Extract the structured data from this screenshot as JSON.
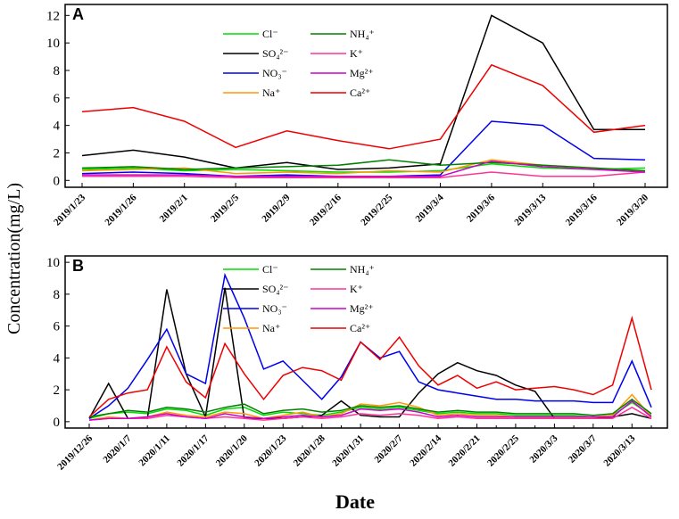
{
  "ylabel": "Concentration(mg/L)",
  "xlabel": "Date",
  "chart_data": [
    {
      "type": "line",
      "title": "A",
      "categories": [
        "2019/1/23",
        "2019/1/26",
        "2019/2/1",
        "2019/2/5",
        "2019/2/9",
        "2019/2/16",
        "2019/2/25",
        "2019/3/4",
        "2019/3/6",
        "2019/3/13",
        "2019/3/16",
        "2019/3/20"
      ],
      "ylim": [
        -0.5,
        12.8
      ],
      "yticks": [
        0,
        2,
        4,
        6,
        8,
        10,
        12
      ],
      "series": [
        {
          "name": "Cl⁻",
          "color": "#00dd00",
          "values": [
            0.8,
            0.9,
            0.7,
            0.8,
            0.7,
            0.6,
            0.6,
            0.7,
            1.2,
            0.9,
            0.8,
            0.9
          ]
        },
        {
          "name": "SO₄²⁻",
          "color": "#000000",
          "values": [
            1.8,
            2.2,
            1.7,
            0.9,
            1.3,
            0.8,
            0.9,
            1.2,
            12.0,
            10.0,
            3.7,
            3.7
          ]
        },
        {
          "name": "NO₃⁻",
          "color": "#0000ee",
          "values": [
            0.5,
            0.6,
            0.5,
            0.3,
            0.4,
            0.3,
            0.3,
            0.4,
            4.3,
            4.0,
            1.6,
            1.5
          ]
        },
        {
          "name": "Na⁺",
          "color": "#ff9900",
          "values": [
            0.7,
            0.8,
            0.9,
            0.5,
            0.6,
            0.5,
            0.7,
            0.6,
            1.5,
            1.1,
            0.9,
            0.7
          ]
        },
        {
          "name": "NH₄⁺",
          "color": "#008000",
          "values": [
            0.9,
            1.0,
            0.8,
            0.9,
            1.0,
            1.1,
            1.5,
            1.1,
            1.3,
            1.1,
            0.9,
            0.7
          ]
        },
        {
          "name": "K⁺",
          "color": "#ff3399",
          "values": [
            0.3,
            0.3,
            0.3,
            0.2,
            0.2,
            0.2,
            0.2,
            0.2,
            0.6,
            0.3,
            0.3,
            0.6
          ]
        },
        {
          "name": "Mg²⁺",
          "color": "#cc00cc",
          "values": [
            0.4,
            0.4,
            0.4,
            0.3,
            0.3,
            0.3,
            0.3,
            0.3,
            1.4,
            1.0,
            0.8,
            0.6
          ]
        },
        {
          "name": "Ca²⁺",
          "color": "#ee0000",
          "values": [
            5.0,
            5.3,
            4.3,
            2.4,
            3.6,
            2.9,
            2.3,
            3.0,
            8.4,
            6.9,
            3.5,
            4.0
          ]
        }
      ]
    },
    {
      "type": "line",
      "title": "B",
      "categories": [
        "2019/12/26",
        null,
        "2020/1/7",
        null,
        "2020/1/11",
        null,
        "2020/1/17",
        null,
        "2020/1/20",
        null,
        "2020/1/23",
        null,
        "2020/1/28",
        null,
        "2020/1/31",
        null,
        "2020/2/7",
        null,
        "2020/2/14",
        null,
        "2020/2/21",
        null,
        "2020/2/25",
        null,
        "2020/3/3",
        null,
        "2020/3/7",
        null,
        "2020/3/13",
        null
      ],
      "ylim": [
        -0.4,
        10.4
      ],
      "yticks": [
        0,
        2,
        4,
        6,
        8,
        10
      ],
      "series": [
        {
          "name": "Cl⁻",
          "color": "#00dd00",
          "values": [
            0.2,
            0.5,
            0.6,
            0.5,
            0.8,
            0.7,
            0.4,
            0.8,
            0.9,
            0.4,
            0.6,
            0.5,
            0.4,
            0.6,
            0.9,
            0.8,
            0.9,
            0.7,
            0.5,
            0.6,
            0.5,
            0.5,
            0.4,
            0.4,
            0.4,
            0.4,
            0.3,
            0.4,
            1.2,
            0.4
          ]
        },
        {
          "name": "SO₄²⁻",
          "color": "#000000",
          "values": [
            0.2,
            2.4,
            0.2,
            0.2,
            8.3,
            3.0,
            0.3,
            8.4,
            0.2,
            0.2,
            0.2,
            0.3,
            0.4,
            1.3,
            0.4,
            0.3,
            0.3,
            1.8,
            3.0,
            3.7,
            3.2,
            2.9,
            2.3,
            1.9,
            0.2,
            0.2,
            0.2,
            0.3,
            0.5,
            0.2
          ]
        },
        {
          "name": "NO₃⁻",
          "color": "#0000ee",
          "values": [
            0.2,
            1.0,
            2.1,
            3.9,
            5.8,
            3.0,
            2.4,
            9.2,
            6.5,
            3.3,
            3.8,
            2.6,
            1.4,
            2.8,
            5.0,
            4.0,
            4.4,
            2.5,
            2.0,
            1.8,
            1.6,
            1.4,
            1.4,
            1.3,
            1.3,
            1.3,
            1.2,
            1.2,
            3.8,
            0.9
          ]
        },
        {
          "name": "Na⁺",
          "color": "#ff9900",
          "values": [
            0.1,
            0.3,
            0.2,
            0.3,
            0.6,
            0.4,
            0.3,
            0.6,
            0.5,
            0.2,
            0.4,
            0.6,
            0.3,
            0.5,
            1.1,
            1.0,
            1.2,
            0.9,
            0.4,
            0.5,
            0.4,
            0.4,
            0.3,
            0.3,
            0.3,
            0.3,
            0.3,
            0.4,
            1.7,
            0.3
          ]
        },
        {
          "name": "NH₄⁺",
          "color": "#008000",
          "values": [
            0.3,
            0.5,
            0.7,
            0.6,
            0.9,
            0.8,
            0.6,
            0.9,
            1.1,
            0.5,
            0.7,
            0.8,
            0.6,
            0.7,
            1.0,
            0.9,
            1.0,
            0.8,
            0.6,
            0.7,
            0.6,
            0.6,
            0.5,
            0.5,
            0.5,
            0.5,
            0.4,
            0.5,
            1.4,
            0.5
          ]
        },
        {
          "name": "K⁺",
          "color": "#ff3399",
          "values": [
            0.1,
            0.2,
            0.2,
            0.2,
            0.4,
            0.3,
            0.2,
            0.3,
            0.2,
            0.1,
            0.2,
            0.3,
            0.2,
            0.3,
            0.5,
            0.4,
            0.5,
            0.4,
            0.2,
            0.3,
            0.2,
            0.2,
            0.2,
            0.2,
            0.2,
            0.2,
            0.2,
            0.2,
            0.9,
            0.2
          ]
        },
        {
          "name": "Mg²⁺",
          "color": "#cc00cc",
          "values": [
            0.1,
            0.2,
            0.2,
            0.3,
            0.5,
            0.3,
            0.2,
            0.5,
            0.3,
            0.2,
            0.3,
            0.4,
            0.3,
            0.4,
            0.8,
            0.7,
            0.8,
            0.6,
            0.3,
            0.4,
            0.3,
            0.3,
            0.3,
            0.3,
            0.3,
            0.3,
            0.3,
            0.3,
            1.3,
            0.3
          ]
        },
        {
          "name": "Ca²⁺",
          "color": "#ee0000",
          "values": [
            0.3,
            1.4,
            1.8,
            2.0,
            4.7,
            2.5,
            1.5,
            4.9,
            3.0,
            1.4,
            2.9,
            3.4,
            3.2,
            2.6,
            5.0,
            3.9,
            5.3,
            3.5,
            2.3,
            2.9,
            2.1,
            2.5,
            2.0,
            2.1,
            2.2,
            2.0,
            1.7,
            2.3,
            6.5,
            2.0
          ]
        }
      ]
    }
  ]
}
